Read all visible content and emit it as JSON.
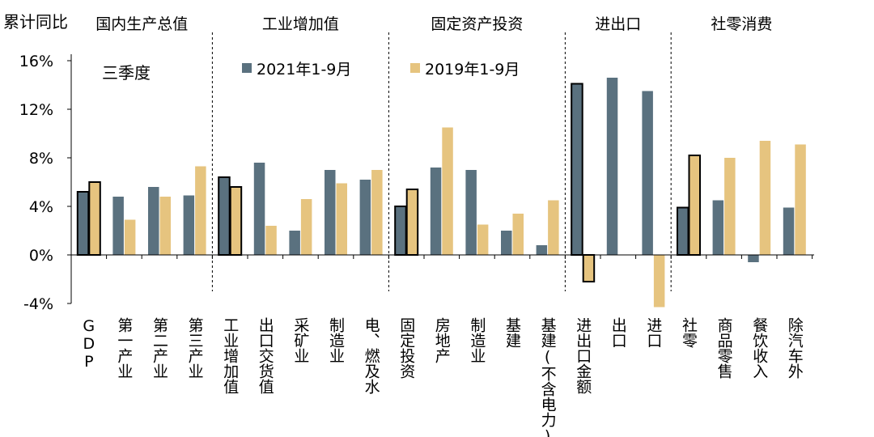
{
  "chart_data": {
    "type": "bar",
    "ylabel": "累计同比",
    "ylim": [
      -4,
      16
    ],
    "yticks": [
      "-4%",
      "0%",
      "4%",
      "8%",
      "12%",
      "16%"
    ],
    "grid": false,
    "legend_position": "top",
    "annotation": "三季度",
    "groups": [
      {
        "label": "国内生产总值",
        "categories": [
          "GDP",
          "第一产业",
          "第二产业",
          "第三产业"
        ]
      },
      {
        "label": "工业增加值",
        "categories": [
          "工业增加值",
          "出口交货值",
          "采矿业",
          "制造业",
          "电、燃及水"
        ]
      },
      {
        "label": "固定资产投资",
        "categories": [
          "固定投资",
          "房地产",
          "制造业",
          "基建",
          "基建(不含电力)"
        ]
      },
      {
        "label": "进出口",
        "categories": [
          "进出口金额",
          "出口",
          "进口"
        ]
      },
      {
        "label": "社零消费",
        "categories": [
          "社零",
          "商品零售",
          "餐饮收入",
          "除汽车外"
        ]
      }
    ],
    "categories": [
      "GDP",
      "第一产业",
      "第二产业",
      "第三产业",
      "工业增加值",
      "出口交货值",
      "采矿业",
      "制造业",
      "电、燃及水",
      "固定投资",
      "房地产",
      "制造业",
      "基建",
      "基建(不含电力)",
      "进出口金额",
      "出口",
      "进口",
      "社零",
      "商品零售",
      "餐饮收入",
      "除汽车外"
    ],
    "highlighted": [
      0,
      4,
      9,
      14,
      17
    ],
    "series": [
      {
        "name": "2021年1-9月",
        "color": "#5a717f",
        "values": [
          5.2,
          4.8,
          5.6,
          4.9,
          6.4,
          7.6,
          2.0,
          7.0,
          6.2,
          4.0,
          7.2,
          7.0,
          2.0,
          0.8,
          14.1,
          14.6,
          13.5,
          3.9,
          4.5,
          -0.6,
          3.9
        ]
      },
      {
        "name": "2019年1-9月",
        "color": "#e6c47f",
        "values": [
          6.0,
          2.9,
          4.8,
          7.3,
          5.6,
          2.4,
          4.6,
          5.9,
          7.0,
          5.4,
          10.5,
          2.5,
          3.4,
          4.5,
          -2.2,
          0.0,
          -4.3,
          8.2,
          8.0,
          9.4,
          9.1
        ]
      }
    ]
  }
}
